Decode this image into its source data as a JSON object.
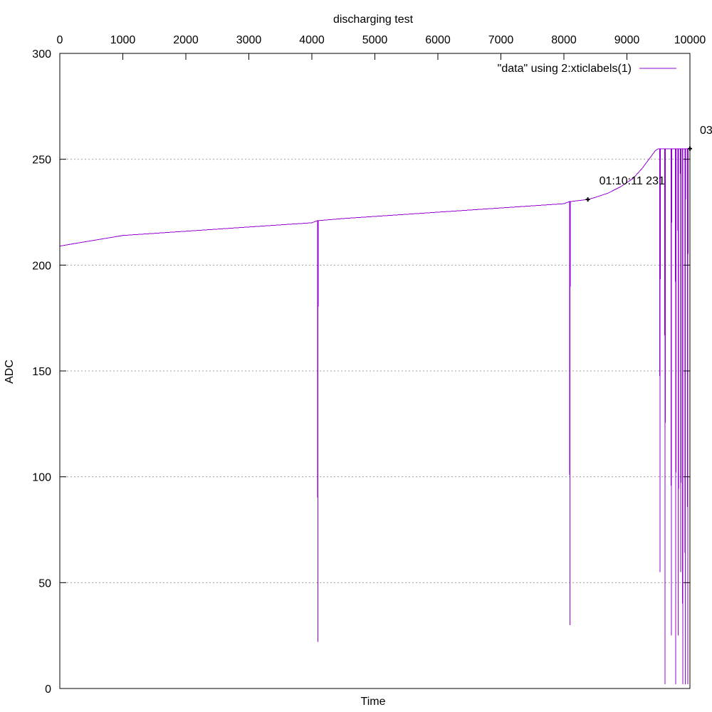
{
  "chart_data": {
    "type": "line",
    "title": "discharging test",
    "xlabel": "Time",
    "ylabel": "ADC",
    "xlim": [
      0,
      10000
    ],
    "ylim": [
      0,
      300
    ],
    "x_ticks": [
      "0",
      "1000",
      "2000",
      "3000",
      "4000",
      "5000",
      "6000",
      "7000",
      "8000",
      "9000",
      "10000"
    ],
    "y_ticks": [
      "0",
      "50",
      "100",
      "150",
      "200",
      "250",
      "300"
    ],
    "x_tick_values": [
      0,
      1000,
      2000,
      3000,
      4000,
      5000,
      6000,
      7000,
      8000,
      9000,
      10000
    ],
    "y_tick_values": [
      0,
      50,
      100,
      150,
      200,
      250,
      300
    ],
    "grid": "horizontal dotted",
    "legend_position": "top-right",
    "color": "#9400d3",
    "series": [
      {
        "name": "\"data\" using 2:xticlabels(1)",
        "x": [
          0,
          200,
          400,
          600,
          800,
          1000,
          1500,
          2000,
          2500,
          3000,
          3500,
          4000,
          4090,
          4095,
          4100,
          4500,
          5000,
          5500,
          6000,
          6500,
          7000,
          7500,
          8000,
          8090,
          8095,
          8100,
          8380,
          8500,
          8700,
          8900,
          9100,
          9250,
          9350,
          9450,
          9500,
          9520,
          9525,
          9530,
          9600,
          9605,
          9610,
          9700,
          9705,
          9710,
          9770,
          9775,
          9780,
          9810,
          9815,
          9820,
          9850,
          9855,
          9860,
          9880,
          9885,
          9890,
          9920,
          9925,
          9930,
          9960,
          9965,
          9970,
          10000
        ],
        "y": [
          209,
          210,
          211,
          212,
          213,
          214,
          215,
          216,
          217,
          218,
          219,
          220,
          221,
          22,
          221,
          222,
          223,
          224,
          225,
          226,
          227,
          228,
          229,
          230,
          30,
          230,
          231,
          232,
          234,
          237,
          241,
          246,
          250,
          254,
          255,
          255,
          55,
          255,
          255,
          2,
          255,
          255,
          25,
          255,
          255,
          2,
          255,
          255,
          25,
          255,
          255,
          55,
          255,
          255,
          2,
          255,
          255,
          2,
          255,
          255,
          2,
          255,
          255
        ]
      }
    ],
    "annotations": [
      {
        "text": "01:10:11 231",
        "x": 8380,
        "y": 231
      },
      {
        "text": "03",
        "x": 10000,
        "y": 255
      }
    ]
  }
}
